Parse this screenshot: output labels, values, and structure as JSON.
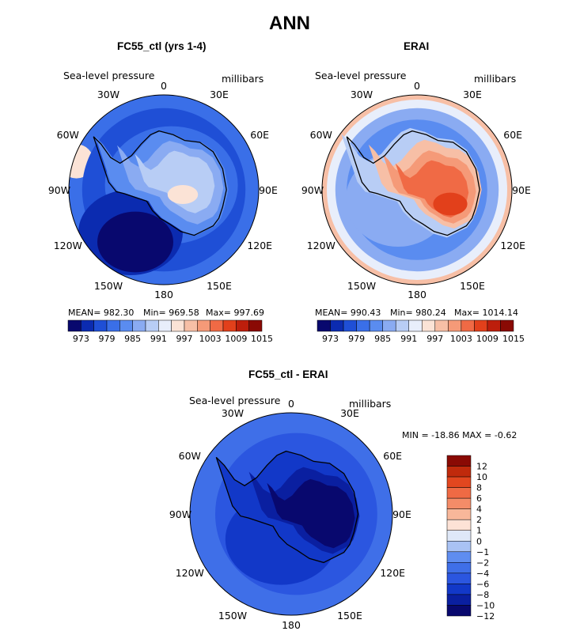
{
  "page_title": "ANN",
  "colors": {
    "abs_scale": [
      "#08086e",
      "#0b2bb0",
      "#1f4fd6",
      "#3a6fe8",
      "#5a8cf0",
      "#8aabf2",
      "#b8cdf5",
      "#e8eefb",
      "#fbe3d6",
      "#f7bfa6",
      "#f59a78",
      "#f06a45",
      "#e2401b",
      "#bd1e0c",
      "#8a0a04"
    ],
    "diff_scale": [
      "#08086e",
      "#0a1fa0",
      "#1238c8",
      "#2b56e0",
      "#3f6fe8",
      "#5f8df0",
      "#a9c2f4",
      "#dfe8f8",
      "#fde2d6",
      "#f8b79a",
      "#f48c68",
      "#ef6a44",
      "#e2471f",
      "#c02a0c",
      "#8a0a04"
    ],
    "coast": "#000000"
  },
  "panels": [
    {
      "id": "left",
      "title": "FC55_ctl (yrs 1-4)",
      "variable": "Sea-level pressure",
      "units": "millibars",
      "stats": {
        "mean": "MEAN= 982.30",
        "min": "Min= 969.58",
        "max": "Max= 997.69"
      },
      "colorbar_ticks": [
        "973",
        "979",
        "985",
        "991",
        "997",
        "1003",
        "1009",
        "1015"
      ],
      "lon_labels": {
        "n0": "0",
        "e30": "30E",
        "e60": "60E",
        "e90": "90E",
        "e120": "120E",
        "e150": "150E",
        "s180": "180",
        "w150": "150W",
        "w120": "120W",
        "w90": "90W",
        "w60": "60W",
        "w30": "30W"
      }
    },
    {
      "id": "right",
      "title": "ERAI",
      "variable": "Sea-level pressure",
      "units": "millibars",
      "stats": {
        "mean": "MEAN= 990.43",
        "min": "Min= 980.24",
        "max": "Max= 1014.14"
      },
      "colorbar_ticks": [
        "973",
        "979",
        "985",
        "991",
        "997",
        "1003",
        "1009",
        "1015"
      ],
      "lon_labels": {
        "n0": "0",
        "e30": "30E",
        "e60": "60E",
        "e90": "90E",
        "e120": "120E",
        "e150": "150E",
        "s180": "180",
        "w150": "150W",
        "w120": "120W",
        "w90": "90W",
        "w60": "60W",
        "w30": "30W"
      }
    },
    {
      "id": "diff",
      "title": "FC55_ctl - ERAI",
      "variable": "Sea-level pressure",
      "units": "millibars",
      "stats": {
        "minmax": "MIN = -18.86 MAX =  -0.62"
      },
      "colorbar_ticks": [
        "12",
        "10",
        "8",
        "6",
        "4",
        "2",
        "1",
        "0",
        "−1",
        "−2",
        "−4",
        "−6",
        "−8",
        "−10",
        "−12"
      ],
      "lon_labels": {
        "n0": "0",
        "e30": "30E",
        "e60": "60E",
        "e90": "90E",
        "e120": "120E",
        "e150": "150E",
        "s180": "180",
        "w150": "150W",
        "w120": "120W",
        "w90": "90W",
        "w60": "60W",
        "w30": "30W"
      }
    }
  ]
}
